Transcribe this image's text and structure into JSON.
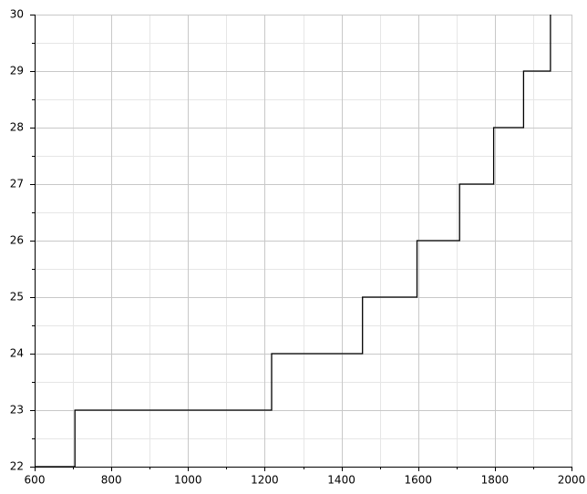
{
  "chart_data": {
    "type": "line",
    "step": true,
    "title": "",
    "xlabel": "",
    "ylabel": "",
    "xlim": [
      600,
      2000
    ],
    "ylim": [
      22,
      30
    ],
    "grid": true,
    "x_ticks": [
      600,
      800,
      1000,
      1200,
      1400,
      1600,
      1800,
      2000
    ],
    "y_ticks": [
      22,
      23,
      24,
      25,
      26,
      27,
      28,
      29,
      30
    ],
    "x_tick_labels": [
      "600",
      "800",
      "1000",
      "1200",
      "1400",
      "1600",
      "1800",
      "2000"
    ],
    "y_tick_labels": [
      "22",
      "23",
      "24",
      "25",
      "26",
      "27",
      "28",
      "29",
      "30"
    ],
    "series": [
      {
        "color": "#000000",
        "x": [
          600,
          705,
          705,
          1218,
          1218,
          1455,
          1455,
          1597,
          1597,
          1708,
          1708,
          1797,
          1797,
          1875,
          1875,
          1945,
          1945
        ],
        "y": [
          22,
          22,
          23,
          23,
          24,
          24,
          25,
          25,
          26,
          26,
          27,
          27,
          28,
          28,
          29,
          29,
          30
        ]
      }
    ],
    "colors": {
      "major_grid": "#c8c8c8",
      "minor_grid": "#e6e6e6",
      "axis": "#000000",
      "line": "#000000"
    }
  }
}
